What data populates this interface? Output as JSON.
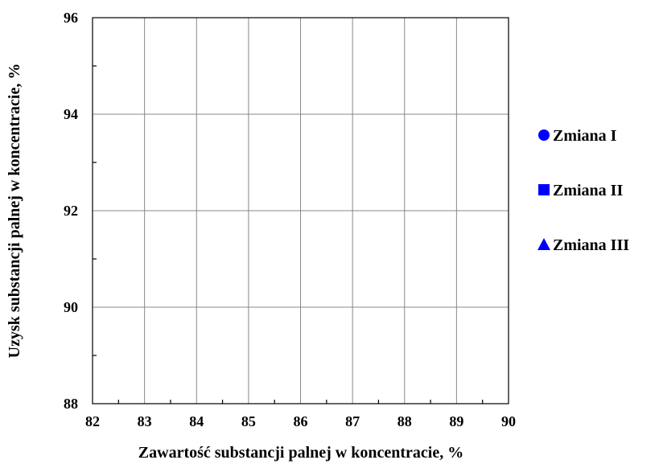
{
  "chart_data": {
    "type": "scatter",
    "title": "",
    "xlabel": "Zawartość substancji palnej w koncentracie, %",
    "ylabel": "Uzysk substancji palnej w koncentracie, %",
    "xlim": [
      82,
      90
    ],
    "ylim": [
      88,
      96
    ],
    "x_ticks": [
      "82",
      "83",
      "84",
      "85",
      "86",
      "87",
      "88",
      "89",
      "90"
    ],
    "y_ticks": [
      "88",
      "90",
      "92",
      "94",
      "96"
    ],
    "grid": true,
    "legend_position": "right",
    "series": [
      {
        "name": "Zmiana I",
        "marker": "circle",
        "color": "#0000ff",
        "points": []
      },
      {
        "name": "Zmiana II",
        "marker": "square",
        "color": "#0000ff",
        "points": []
      },
      {
        "name": "Zmiana III",
        "marker": "triangle",
        "color": "#0000ff",
        "points": []
      }
    ]
  }
}
